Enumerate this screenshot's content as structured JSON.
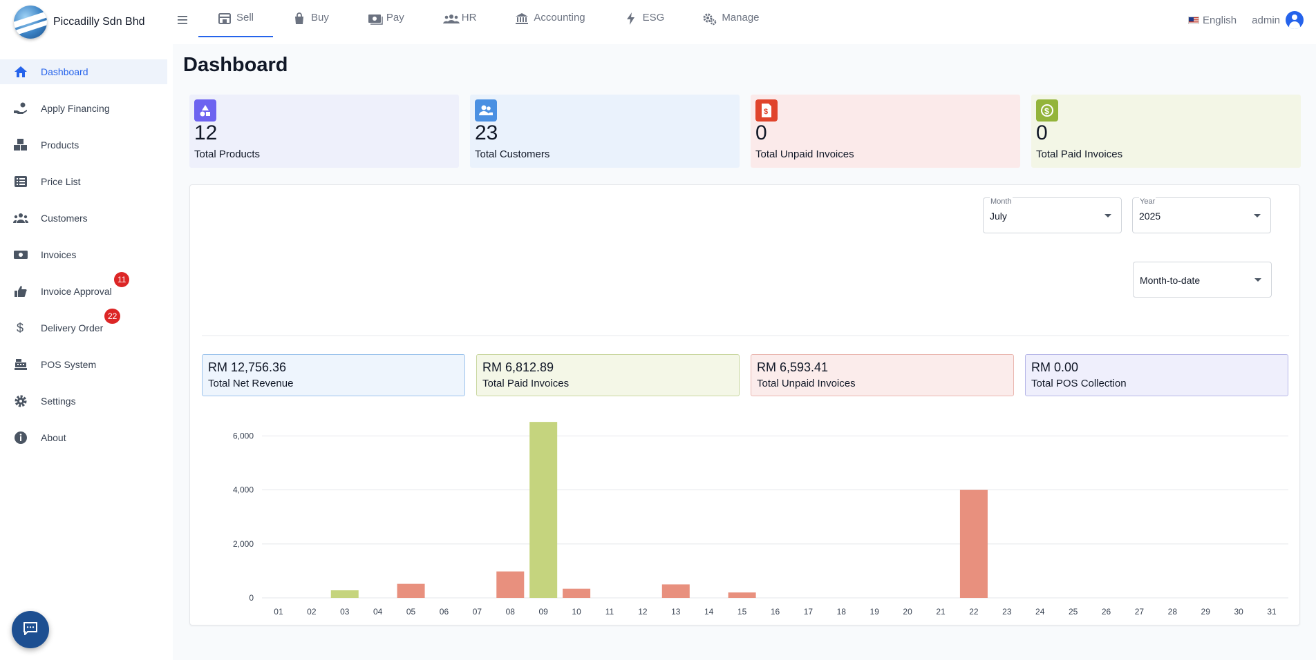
{
  "app": {
    "company": "Piccadilly Sdn Bhd"
  },
  "topnav": {
    "items": [
      {
        "label": "Sell",
        "icon": "store-icon"
      },
      {
        "label": "Buy",
        "icon": "shopping-bag-icon"
      },
      {
        "label": "Pay",
        "icon": "money-icon"
      },
      {
        "label": "HR",
        "icon": "people-icon"
      },
      {
        "label": "Accounting",
        "icon": "bank-icon"
      },
      {
        "label": "ESG",
        "icon": "lightning-icon"
      },
      {
        "label": "Manage",
        "icon": "gears-icon"
      }
    ],
    "active": "Sell",
    "language": "English",
    "user": "admin"
  },
  "sidebar": {
    "items": [
      {
        "label": "Dashboard",
        "icon": "home-icon"
      },
      {
        "label": "Apply Financing",
        "icon": "hand-coin-icon"
      },
      {
        "label": "Products",
        "icon": "boxes-icon"
      },
      {
        "label": "Price List",
        "icon": "list-icon"
      },
      {
        "label": "Customers",
        "icon": "users-icon"
      },
      {
        "label": "Invoices",
        "icon": "money-bill-icon"
      },
      {
        "label": "Invoice Approval",
        "icon": "thumbs-up-icon",
        "badge": "11"
      },
      {
        "label": "Delivery Order",
        "icon": "dollar-icon",
        "badge": "22"
      },
      {
        "label": "POS System",
        "icon": "cash-register-icon"
      },
      {
        "label": "Settings",
        "icon": "gear-icon"
      },
      {
        "label": "About",
        "icon": "info-icon"
      }
    ],
    "active": "Dashboard"
  },
  "page": {
    "title": "Dashboard"
  },
  "stats": [
    {
      "value": "12",
      "label": "Total Products",
      "icon": "shapes-icon",
      "bg": "#eef0fb",
      "icon_bg": "#6d63f0"
    },
    {
      "value": "23",
      "label": "Total Customers",
      "icon": "users-icon",
      "bg": "#eaf2fc",
      "icon_bg": "#4a90e2"
    },
    {
      "value": "0",
      "label": "Total Unpaid Invoices",
      "icon": "invoice-icon",
      "bg": "#fbeaea",
      "icon_bg": "#e0442c"
    },
    {
      "value": "0",
      "label": "Total Paid Invoices",
      "icon": "coin-icon",
      "bg": "#f3f6e6",
      "icon_bg": "#93b43a"
    }
  ],
  "filters": {
    "month": {
      "label": "Month",
      "value": "July"
    },
    "year": {
      "label": "Year",
      "value": "2025"
    },
    "period": {
      "value": "Month-to-date"
    }
  },
  "summary": [
    {
      "value": "RM 12,756.36",
      "label": "Total Net Revenue",
      "bg": "#eef5fd",
      "border": "#9cc3ec"
    },
    {
      "value": "RM 6,812.89",
      "label": "Total Paid Invoices",
      "bg": "#f4f7e7",
      "border": "#c9d7a0"
    },
    {
      "value": "RM 6,593.41",
      "label": "Total Unpaid Invoices",
      "bg": "#fbeceb",
      "border": "#eab7b0"
    },
    {
      "value": "RM 0.00",
      "label": "Total POS Collection",
      "bg": "#efeffc",
      "border": "#b7b7e8"
    }
  ],
  "chart_data": {
    "type": "bar",
    "categories": [
      "01",
      "02",
      "03",
      "04",
      "05",
      "06",
      "07",
      "08",
      "09",
      "10",
      "11",
      "12",
      "13",
      "14",
      "15",
      "16",
      "17",
      "18",
      "19",
      "20",
      "21",
      "22",
      "23",
      "24",
      "25",
      "26",
      "27",
      "28",
      "29",
      "30",
      "31"
    ],
    "values": [
      0,
      0,
      280,
      0,
      520,
      0,
      0,
      980,
      6520,
      340,
      0,
      0,
      500,
      0,
      200,
      0,
      0,
      0,
      0,
      0,
      0,
      4000,
      0,
      0,
      0,
      0,
      0,
      0,
      0,
      0,
      0
    ],
    "bar_status": [
      "none",
      "none",
      "paid",
      "none",
      "unpaid",
      "none",
      "none",
      "unpaid",
      "paid",
      "unpaid",
      "none",
      "none",
      "unpaid",
      "none",
      "unpaid",
      "none",
      "none",
      "none",
      "none",
      "none",
      "none",
      "unpaid",
      "none",
      "none",
      "none",
      "none",
      "none",
      "none",
      "none",
      "none",
      "none"
    ],
    "colors": {
      "paid": "#c5d47e",
      "unpaid": "#e8907e"
    },
    "yticks": [
      0,
      2000,
      4000,
      6000
    ],
    "ytick_labels": [
      "0",
      "2,000",
      "4,000",
      "6,000"
    ],
    "ylim": [
      0,
      6600
    ],
    "grid": true
  }
}
